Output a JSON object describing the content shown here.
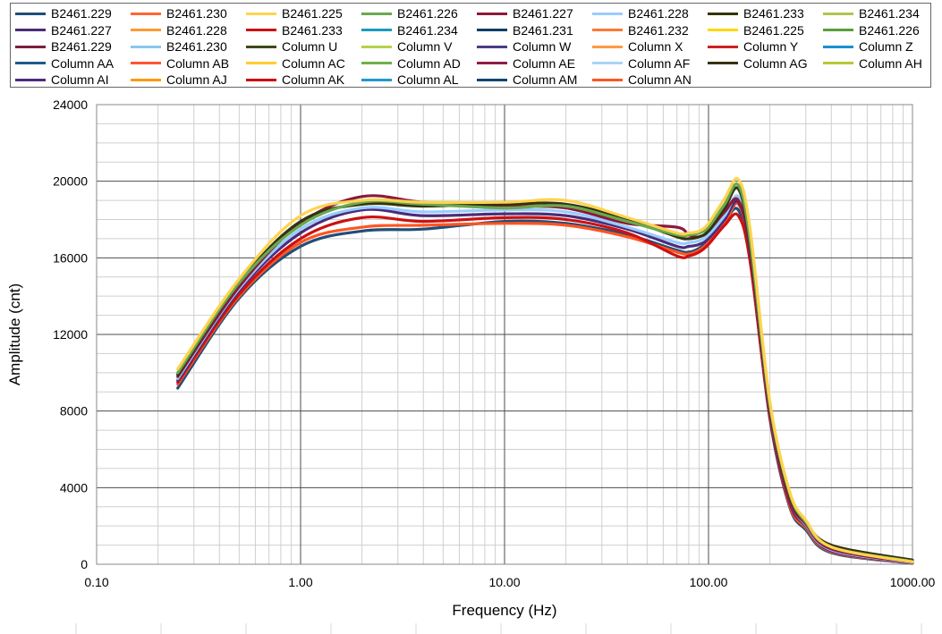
{
  "chart_data": {
    "type": "line",
    "title": "",
    "xlabel": "Frequency  (Hz)",
    "ylabel": "Amplitude (cnt)",
    "x_scale": "log",
    "xlim": [
      0.1,
      1000
    ],
    "ylim": [
      0,
      24000
    ],
    "x_ticks": [
      "0.10",
      "1.00",
      "10.00",
      "100.00",
      "1000.00"
    ],
    "y_ticks": [
      "0",
      "4000",
      "8000",
      "12000",
      "16000",
      "20000",
      "24000"
    ],
    "grid": true,
    "legend_position": "top",
    "x": [
      0.25,
      0.5,
      1,
      2,
      4,
      10,
      20,
      40,
      70,
      80,
      90,
      100,
      120,
      140,
      160,
      200,
      250,
      300,
      400,
      1000
    ],
    "legend": [
      {
        "name": "B2461.229",
        "color": "#1f4e79"
      },
      {
        "name": "B2461.230",
        "color": "#ff6633"
      },
      {
        "name": "B2461.225",
        "color": "#ffd34d"
      },
      {
        "name": "B2461.226",
        "color": "#6aa84f"
      },
      {
        "name": "B2461.227",
        "color": "#8b1a3a"
      },
      {
        "name": "B2461.228",
        "color": "#99ccff"
      },
      {
        "name": "B2461.233",
        "color": "#333300"
      },
      {
        "name": "B2461.234",
        "color": "#b3c34d"
      },
      {
        "name": "B2461.227",
        "color": "#4b2c7a"
      },
      {
        "name": "B2461.228",
        "color": "#ff9933"
      },
      {
        "name": "B2461.233",
        "color": "#cc1111"
      },
      {
        "name": "B2461.234",
        "color": "#1a9bbf"
      },
      {
        "name": "B2461.231",
        "color": "#0d3d66"
      },
      {
        "name": "B2461.232",
        "color": "#ff7733"
      },
      {
        "name": "B2461.225",
        "color": "#ffd700"
      },
      {
        "name": "B2461.226",
        "color": "#5a9e3a"
      },
      {
        "name": "B2461.229",
        "color": "#7a1f3d"
      },
      {
        "name": "B2461.230",
        "color": "#88c8ee"
      },
      {
        "name": "Column U",
        "color": "#3d4a1a"
      },
      {
        "name": "Column V",
        "color": "#b5d14a"
      },
      {
        "name": "Column W",
        "color": "#4d3b87"
      },
      {
        "name": "Column X",
        "color": "#ff9944"
      },
      {
        "name": "Column Y",
        "color": "#cc2222"
      },
      {
        "name": "Column Z",
        "color": "#1a8fd1"
      },
      {
        "name": "Column AA",
        "color": "#1f5a8c"
      },
      {
        "name": "Column AB",
        "color": "#ff5533"
      },
      {
        "name": "Column AC",
        "color": "#ffcc33"
      },
      {
        "name": "Column AD",
        "color": "#6fb04a"
      },
      {
        "name": "Column AE",
        "color": "#8c1f46"
      },
      {
        "name": "Column AF",
        "color": "#a8d4f5"
      },
      {
        "name": "Column AG",
        "color": "#333311"
      },
      {
        "name": "Column AH",
        "color": "#b8c936"
      },
      {
        "name": "Column AI",
        "color": "#4a2d80"
      },
      {
        "name": "Column AJ",
        "color": "#ff9911"
      },
      {
        "name": "Column AK",
        "color": "#cc0000"
      },
      {
        "name": "Column AL",
        "color": "#2299cc"
      },
      {
        "name": "Column AM",
        "color": "#114477"
      },
      {
        "name": "Column AN",
        "color": "#ff5522"
      }
    ],
    "series": [
      {
        "name": "B2461.229",
        "color": "#1f4e79",
        "values": [
          9200,
          13900,
          16600,
          17400,
          17500,
          17900,
          17800,
          17200,
          16400,
          16300,
          16500,
          16900,
          17900,
          18500,
          15900,
          7600,
          3000,
          1800,
          600,
          50
        ]
      },
      {
        "name": "Column AN",
        "color": "#ff5522",
        "values": [
          9400,
          14000,
          16800,
          17600,
          17700,
          17800,
          17700,
          17100,
          16300,
          16200,
          16400,
          16800,
          17800,
          18800,
          16200,
          7800,
          3100,
          1900,
          650,
          60
        ]
      },
      {
        "name": "B2461.233",
        "color": "#cc1111",
        "values": [
          9500,
          14100,
          17000,
          18100,
          17900,
          18100,
          18000,
          17300,
          16100,
          16100,
          16300,
          16700,
          17700,
          18200,
          15800,
          7700,
          3200,
          2000,
          700,
          70
        ]
      },
      {
        "name": "B2461.227",
        "color": "#4b2c7a",
        "values": [
          9600,
          14300,
          17300,
          18500,
          18200,
          18300,
          18200,
          17500,
          16600,
          16600,
          16700,
          17000,
          18000,
          18900,
          16300,
          7900,
          3300,
          2000,
          700,
          70
        ]
      },
      {
        "name": "B2461.228",
        "color": "#99ccff",
        "values": [
          9700,
          14400,
          17500,
          18600,
          18400,
          18500,
          18400,
          17600,
          16800,
          16800,
          16900,
          17200,
          18200,
          19200,
          16500,
          8000,
          3400,
          2050,
          750,
          80
        ]
      },
      {
        "name": "B2461.227",
        "color": "#8b1a3a",
        "values": [
          9800,
          14500,
          17800,
          19200,
          18900,
          18700,
          18600,
          17800,
          17600,
          17200,
          17100,
          17400,
          18400,
          19000,
          16400,
          8000,
          3400,
          2100,
          800,
          100
        ]
      },
      {
        "name": "Column AG",
        "color": "#333311",
        "values": [
          9900,
          14700,
          17900,
          18800,
          18700,
          18800,
          18800,
          18000,
          17100,
          17000,
          17100,
          17400,
          18600,
          19600,
          16700,
          8200,
          3600,
          2200,
          1000,
          220
        ]
      },
      {
        "name": "B2461.226",
        "color": "#6aa84f",
        "values": [
          10000,
          14700,
          17700,
          18900,
          18800,
          18600,
          18700,
          17900,
          17200,
          17200,
          17300,
          17600,
          18800,
          19800,
          16900,
          8300,
          3700,
          2200,
          900,
          150
        ]
      },
      {
        "name": "B2461.225",
        "color": "#ffd34d",
        "values": [
          10200,
          14900,
          18200,
          19000,
          18900,
          18900,
          19000,
          18100,
          17300,
          17300,
          17400,
          17800,
          19100,
          20100,
          17500,
          8500,
          3800,
          2300,
          900,
          120
        ]
      }
    ]
  }
}
